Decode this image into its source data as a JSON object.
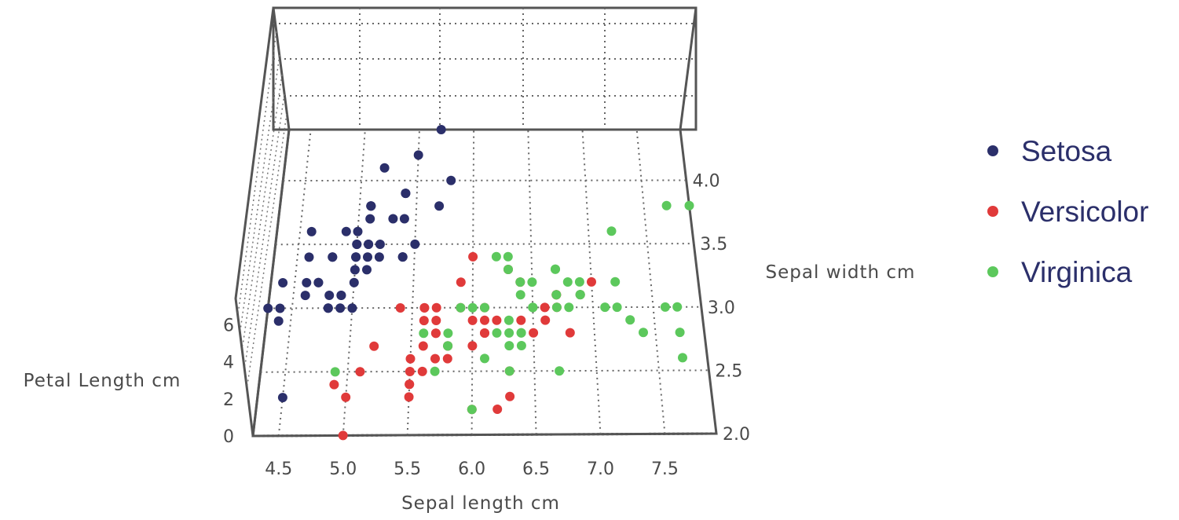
{
  "chart_data": {
    "type": "scatter",
    "title": "",
    "xlabel": "Sepal length cm",
    "ylabel": "Sepal width cm",
    "zlabel": "Petal Length cm",
    "xlim": [
      4.3,
      7.9
    ],
    "ylim": [
      2.0,
      4.4
    ],
    "zlim": [
      0,
      7
    ],
    "x_ticks": [
      "4.5",
      "5.0",
      "5.5",
      "6.0",
      "6.5",
      "7.0",
      "7.5"
    ],
    "y_ticks": [
      "2.0",
      "2.5",
      "3.0",
      "3.5",
      "4.0"
    ],
    "z_ticks": [
      "0",
      "2",
      "4",
      "6"
    ],
    "legend": {
      "position": "right"
    },
    "series": [
      {
        "name": "Setosa",
        "color": "#2b2f6a",
        "points": [
          [
            5.1,
            3.5
          ],
          [
            4.9,
            3.0
          ],
          [
            4.7,
            3.2
          ],
          [
            4.6,
            3.1
          ],
          [
            5.0,
            3.6
          ],
          [
            5.4,
            3.9
          ],
          [
            4.6,
            3.4
          ],
          [
            5.0,
            3.4
          ],
          [
            4.4,
            2.9
          ],
          [
            4.9,
            3.1
          ],
          [
            5.4,
            3.7
          ],
          [
            4.8,
            3.4
          ],
          [
            4.8,
            3.0
          ],
          [
            4.3,
            3.0
          ],
          [
            5.8,
            4.0
          ],
          [
            5.7,
            4.4
          ],
          [
            5.4,
            3.9
          ],
          [
            5.1,
            3.5
          ],
          [
            5.7,
            3.8
          ],
          [
            5.1,
            3.8
          ],
          [
            5.4,
            3.4
          ],
          [
            5.1,
            3.7
          ],
          [
            4.6,
            3.6
          ],
          [
            5.1,
            3.3
          ],
          [
            4.8,
            3.4
          ],
          [
            5.0,
            3.0
          ],
          [
            5.0,
            3.4
          ],
          [
            5.2,
            3.5
          ],
          [
            5.2,
            3.4
          ],
          [
            4.7,
            3.2
          ],
          [
            4.8,
            3.1
          ],
          [
            5.4,
            3.4
          ],
          [
            5.2,
            4.1
          ],
          [
            5.5,
            4.2
          ],
          [
            4.9,
            3.1
          ],
          [
            5.0,
            3.2
          ],
          [
            5.5,
            3.5
          ],
          [
            4.9,
            3.6
          ],
          [
            4.4,
            3.0
          ],
          [
            5.1,
            3.4
          ],
          [
            5.0,
            3.5
          ],
          [
            4.5,
            2.3
          ],
          [
            4.4,
            3.2
          ],
          [
            5.0,
            3.5
          ],
          [
            5.1,
            3.8
          ],
          [
            4.8,
            3.0
          ],
          [
            5.1,
            3.8
          ],
          [
            4.6,
            3.2
          ],
          [
            5.3,
            3.7
          ],
          [
            5.0,
            3.3
          ]
        ]
      },
      {
        "name": "Versicolor",
        "color": "#e03a3a",
        "points": [
          [
            7.0,
            3.2
          ],
          [
            6.4,
            3.2
          ],
          [
            6.9,
            3.1
          ],
          [
            5.5,
            2.3
          ],
          [
            6.5,
            2.8
          ],
          [
            5.7,
            2.8
          ],
          [
            6.3,
            3.3
          ],
          [
            4.9,
            2.4
          ],
          [
            6.6,
            2.9
          ],
          [
            5.2,
            2.7
          ],
          [
            5.0,
            2.0
          ],
          [
            5.9,
            3.0
          ],
          [
            6.0,
            2.2
          ],
          [
            6.1,
            2.9
          ],
          [
            5.6,
            2.9
          ],
          [
            6.7,
            3.1
          ],
          [
            5.6,
            3.0
          ],
          [
            5.8,
            2.7
          ],
          [
            6.2,
            2.2
          ],
          [
            5.6,
            2.5
          ],
          [
            5.9,
            3.2
          ],
          [
            6.1,
            2.8
          ],
          [
            6.3,
            2.5
          ],
          [
            6.1,
            2.8
          ],
          [
            6.4,
            2.9
          ],
          [
            6.6,
            3.0
          ],
          [
            6.8,
            2.8
          ],
          [
            6.7,
            3.0
          ],
          [
            6.0,
            2.9
          ],
          [
            5.7,
            2.6
          ],
          [
            5.5,
            2.4
          ],
          [
            5.5,
            2.4
          ],
          [
            5.8,
            2.7
          ],
          [
            6.0,
            2.7
          ],
          [
            5.4,
            3.0
          ],
          [
            6.0,
            3.4
          ],
          [
            6.7,
            3.1
          ],
          [
            6.3,
            2.3
          ],
          [
            5.6,
            3.0
          ],
          [
            5.5,
            2.5
          ],
          [
            5.5,
            2.6
          ],
          [
            6.1,
            3.0
          ],
          [
            5.8,
            2.6
          ],
          [
            5.0,
            2.3
          ],
          [
            5.6,
            2.7
          ],
          [
            5.7,
            3.0
          ],
          [
            5.7,
            2.9
          ],
          [
            6.2,
            2.9
          ],
          [
            5.1,
            2.5
          ],
          [
            5.7,
            2.8
          ]
        ]
      },
      {
        "name": "Virginica",
        "color": "#5cc85c",
        "points": [
          [
            6.3,
            3.3
          ],
          [
            5.8,
            2.7
          ],
          [
            7.1,
            3.0
          ],
          [
            6.3,
            2.9
          ],
          [
            6.5,
            3.0
          ],
          [
            7.6,
            3.0
          ],
          [
            4.9,
            2.5
          ],
          [
            7.3,
            2.9
          ],
          [
            6.7,
            2.5
          ],
          [
            7.2,
            3.6
          ],
          [
            6.5,
            3.2
          ],
          [
            6.4,
            2.7
          ],
          [
            6.8,
            3.0
          ],
          [
            5.7,
            2.5
          ],
          [
            5.8,
            2.8
          ],
          [
            6.4,
            3.2
          ],
          [
            6.5,
            3.0
          ],
          [
            7.7,
            3.8
          ],
          [
            7.7,
            2.6
          ],
          [
            6.0,
            2.2
          ],
          [
            6.9,
            3.2
          ],
          [
            5.6,
            2.8
          ],
          [
            7.7,
            2.8
          ],
          [
            6.3,
            2.7
          ],
          [
            6.7,
            3.3
          ],
          [
            7.2,
            3.2
          ],
          [
            6.2,
            2.8
          ],
          [
            6.1,
            3.0
          ],
          [
            6.4,
            2.8
          ],
          [
            7.2,
            3.0
          ],
          [
            7.4,
            2.8
          ],
          [
            7.9,
            3.8
          ],
          [
            6.4,
            2.8
          ],
          [
            6.3,
            2.8
          ],
          [
            6.1,
            2.6
          ],
          [
            7.7,
            3.0
          ],
          [
            6.3,
            3.4
          ],
          [
            6.4,
            3.1
          ],
          [
            6.0,
            3.0
          ],
          [
            6.9,
            3.1
          ],
          [
            6.7,
            3.1
          ],
          [
            6.9,
            3.1
          ],
          [
            5.8,
            2.7
          ],
          [
            6.8,
            3.2
          ],
          [
            6.7,
            3.3
          ],
          [
            6.7,
            3.0
          ],
          [
            6.3,
            2.5
          ],
          [
            6.5,
            3.0
          ],
          [
            6.2,
            3.4
          ],
          [
            5.9,
            3.0
          ]
        ]
      }
    ]
  }
}
